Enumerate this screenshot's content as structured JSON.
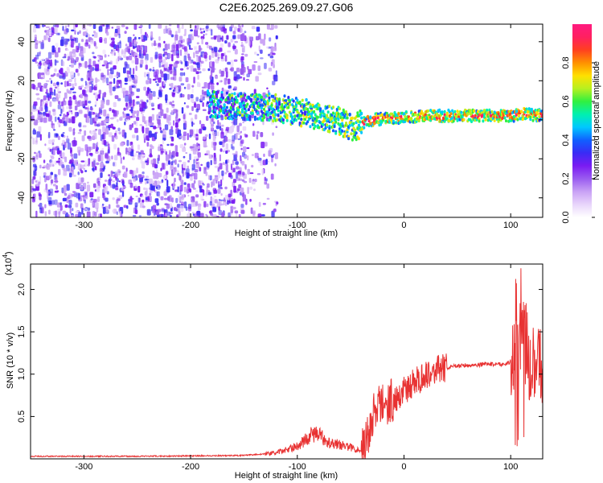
{
  "figure_title": "C2E6.2025.269.09.27.G06",
  "colors": {
    "snr_line": "#e83232",
    "frame": "#000000",
    "colormap": [
      "#ffffff",
      "#e8d5fb",
      "#c9a2f5",
      "#9a5cf0",
      "#7a1cf2",
      "#3a2bf5",
      "#1060ff",
      "#00c8ff",
      "#00f0b0",
      "#30f040",
      "#b8f020",
      "#ffe000",
      "#ff9000",
      "#ff4020",
      "#ff2060",
      "#ff1a80"
    ]
  },
  "chart_data": [
    {
      "type": "heatmap",
      "title": "C2E6.2025.269.09.27.G06",
      "xlabel": "Height of straight line (km)",
      "ylabel": "Frequency (Hz)",
      "xlim": [
        -350,
        130
      ],
      "ylim": [
        -50,
        49
      ],
      "xticks": [
        -300,
        -200,
        -100,
        0,
        100
      ],
      "yticks": [
        -40,
        -20,
        0,
        20,
        40
      ],
      "colorbar": {
        "label": "Normalized spectral amplitude",
        "range": [
          0,
          1
        ],
        "ticks": [
          "0.0",
          "0.2",
          "0.4",
          "0.6",
          "0.8"
        ],
        "tick_values": [
          0.0,
          0.2,
          0.4,
          0.6,
          0.8
        ]
      },
      "signal_ridge": {
        "description_points_km_hz": [
          [
            -185,
            8
          ],
          [
            -150,
            7
          ],
          [
            -120,
            6
          ],
          [
            -100,
            4
          ],
          [
            -80,
            2
          ],
          [
            -60,
            -1
          ],
          [
            -50,
            -4
          ],
          [
            -45,
            -3
          ],
          [
            -30,
            0
          ],
          [
            -10,
            1
          ],
          [
            20,
            2
          ],
          [
            70,
            2
          ],
          [
            100,
            2
          ],
          [
            112,
            3
          ],
          [
            130,
            2
          ]
        ],
        "noise_region_km": [
          -350,
          -130
        ],
        "strong_band_km": [
          -40,
          130
        ],
        "strong_band_hz": [
          0,
          4
        ]
      }
    },
    {
      "type": "line",
      "xlabel": "Height of straight line (km)",
      "ylabel": "SNR (10 * v/v)",
      "scale_note": "(x10",
      "scale_exponent": "4",
      "xlim": [
        -350,
        130
      ],
      "ylim": [
        0,
        2.3
      ],
      "xticks": [
        -300,
        -200,
        -100,
        0,
        100
      ],
      "yticks": [
        0.5,
        1.0,
        1.5,
        2.0
      ],
      "ytick_labels": [
        "0.5",
        "1.0",
        "1.5",
        "2.0"
      ],
      "series": [
        {
          "name": "SNR",
          "x": [
            -350,
            -250,
            -150,
            -120,
            -100,
            -85,
            -80,
            -70,
            -55,
            -40,
            -35,
            -30,
            -25,
            -20,
            -10,
            0,
            10,
            20,
            30,
            50,
            70,
            80,
            90,
            95,
            100,
            105,
            108,
            110,
            112,
            115,
            120,
            130
          ],
          "y": [
            0.03,
            0.03,
            0.04,
            0.07,
            0.15,
            0.3,
            0.28,
            0.2,
            0.15,
            0.1,
            0.2,
            0.5,
            0.6,
            0.65,
            0.7,
            0.8,
            0.9,
            1.0,
            1.05,
            1.1,
            1.11,
            1.12,
            1.12,
            1.12,
            1.15,
            1.2,
            1.2,
            1.4,
            1.5,
            1.1,
            1.1,
            1.1
          ]
        }
      ]
    }
  ]
}
